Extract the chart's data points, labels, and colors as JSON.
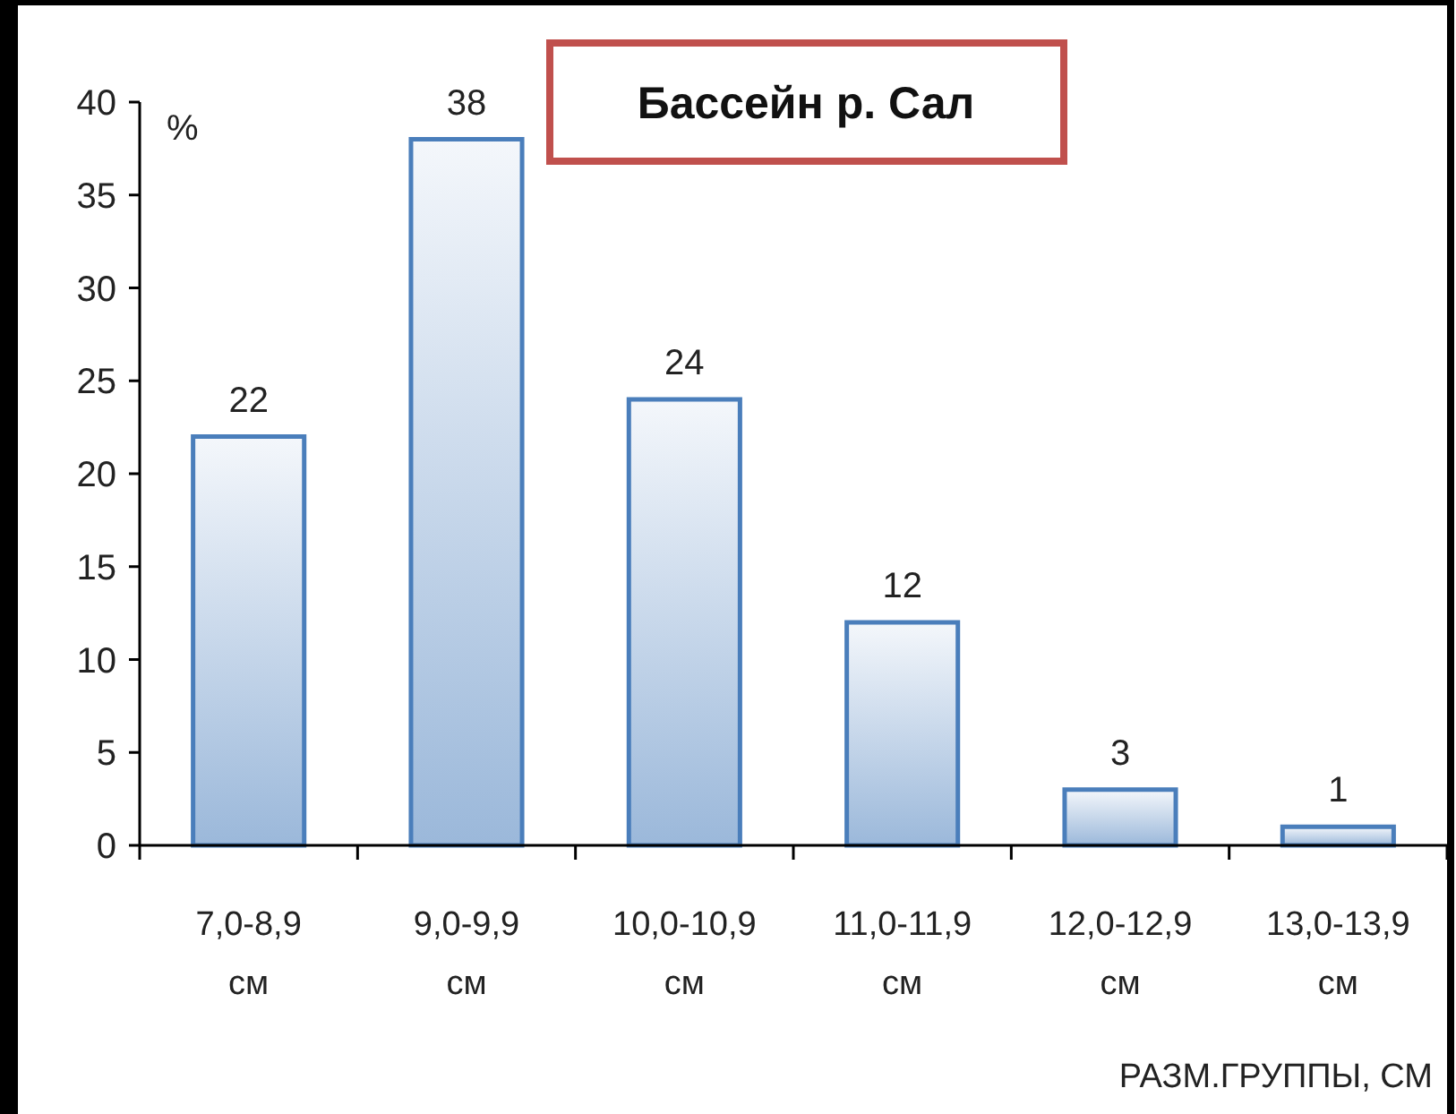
{
  "chart_data": {
    "type": "bar",
    "title": "Бассейн р. Сал",
    "ylabel": "%",
    "xlabel": "РАЗМ.ГРУППЫ, СМ",
    "categories": [
      "7,0-8,9 см",
      "9,0-9,9 см",
      "10,0-10,9 см",
      "11,0-11,9 см",
      "12,0-12,9 см",
      "13,0-13,9 см"
    ],
    "values": [
      22,
      38,
      24,
      12,
      3,
      1
    ],
    "color": "#4a7ebb",
    "data_labels": true,
    "ylim": [
      0,
      40
    ],
    "yticks": [
      0,
      5,
      10,
      15,
      20,
      25,
      30,
      35,
      40
    ]
  }
}
